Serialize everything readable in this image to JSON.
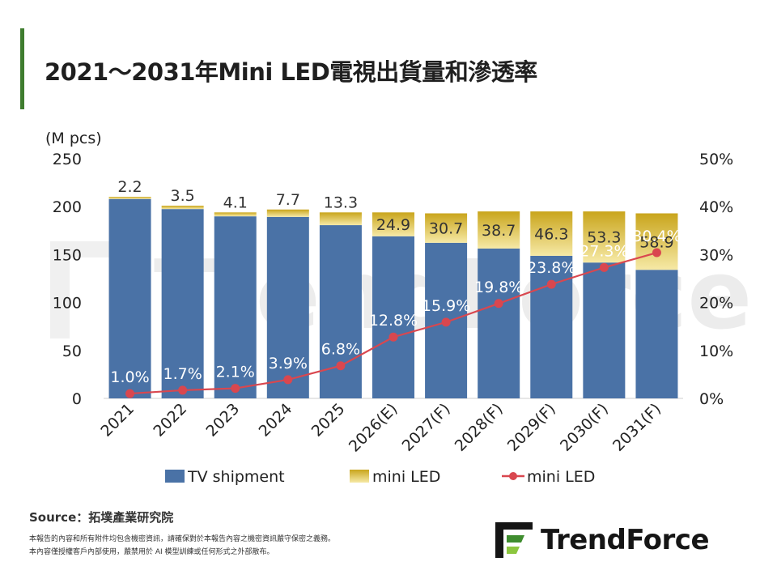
{
  "title": "2021～2031年Mini LED電視出貨量和滲透率",
  "source": "Source：拓墣產業研究院",
  "notes": [
    "本報告的內容和所有附件均包含機密資訊，請確保對於本報告內容之機密資訊嚴守保密之義務。",
    "本內容僅授權客戶內部使用，嚴禁用於 AI 模型訓練或任何形式之外部散布。"
  ],
  "logo_text": "TrendForce",
  "watermark": "TrendForce",
  "colors": {
    "accent": "#3f7d2f",
    "tv_bar": "#4a72a6",
    "mini_bar_top": "#c9a51c",
    "mini_bar_bottom": "#f6e9a6",
    "line": "#d9474f"
  },
  "chart_data": {
    "type": "bar",
    "categories": [
      "2021",
      "2022",
      "2023",
      "2024",
      "2025",
      "2026(E)",
      "2027(F)",
      "2028(F)",
      "2029(F)",
      "2030(F)",
      "2031(F)"
    ],
    "y_unit_label": "(M pcs)",
    "ylim": [
      0,
      250
    ],
    "yticks": [
      0,
      50,
      100,
      150,
      200,
      250
    ],
    "y2lim": [
      0,
      50
    ],
    "y2ticks": [
      "0%",
      "10%",
      "20%",
      "30%",
      "40%",
      "50%"
    ],
    "series": [
      {
        "name": "TV shipment",
        "type": "bar",
        "stack": "tv",
        "values": [
          208.0,
          197.5,
          189.9,
          189.3,
          180.7,
          169.1,
          162.3,
          156.3,
          148.7,
          141.7,
          134.1
        ]
      },
      {
        "name": "mini LED",
        "type": "bar",
        "stack": "tv",
        "values": [
          2.2,
          3.5,
          4.1,
          7.7,
          13.3,
          24.9,
          30.7,
          38.7,
          46.3,
          53.3,
          58.9
        ]
      },
      {
        "name": "mini LED",
        "type": "line",
        "axis": "right",
        "values": [
          1.0,
          1.7,
          2.1,
          3.9,
          6.8,
          12.8,
          15.9,
          19.8,
          23.8,
          27.3,
          30.4
        ]
      }
    ],
    "bar_labels": [
      "2.2",
      "3.5",
      "4.1",
      "7.7",
      "13.3",
      "24.9",
      "30.7",
      "38.7",
      "46.3",
      "53.3",
      "58.9"
    ],
    "line_labels": [
      "1.0%",
      "1.7%",
      "2.1%",
      "3.9%",
      "6.8%",
      "12.8%",
      "15.9%",
      "19.8%",
      "23.8%",
      "27.3%",
      "30.4%"
    ],
    "legend_position": "bottom",
    "grid": false
  }
}
